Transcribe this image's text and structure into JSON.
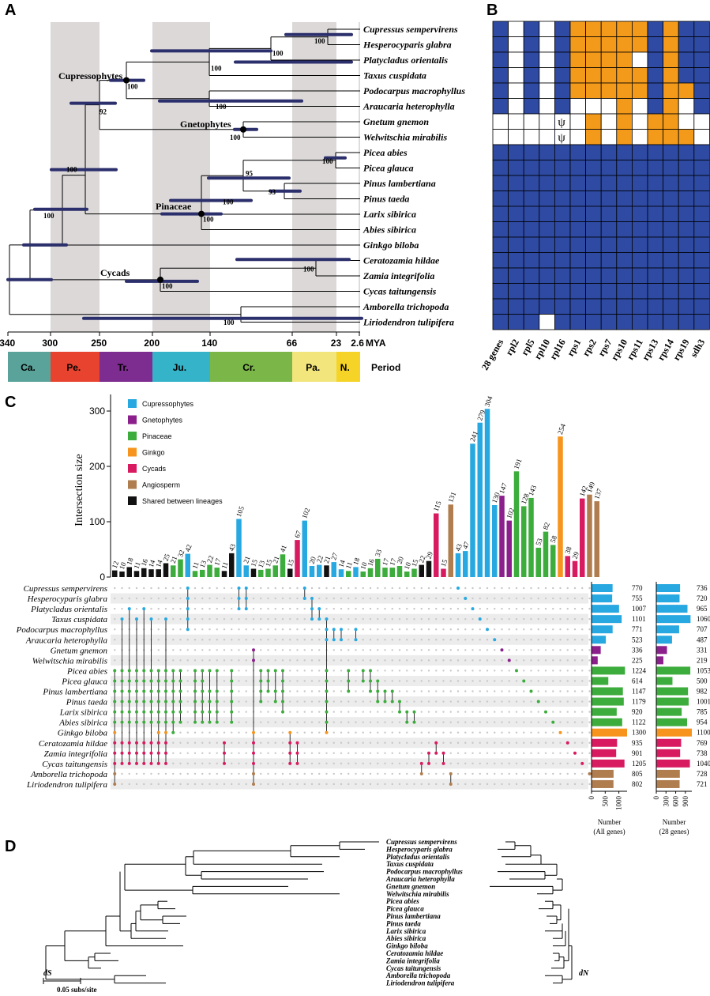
{
  "labels": {
    "A": "A",
    "B": "B",
    "C": "C",
    "D": "D"
  },
  "colors": {
    "blue": "#2e4aa3",
    "orange": "#f39a1b",
    "white": "#ffffff",
    "bar": "#2b2f6b",
    "shade": "#dcd8d8",
    "Cupressophytes": "#27a8e0",
    "Gnetophytes": "#8b1f8b",
    "Pinaceae": "#3cac3c",
    "Ginkgo": "#f7941d",
    "Cycads": "#d81b60",
    "Angiosperm": "#b07d4f",
    "Shared": "#111111"
  },
  "species": [
    "Cupressus sempervirens",
    "Hesperocyparis glabra",
    "Platycladus orientalis",
    "Taxus cuspidata",
    "Podocarpus macrophyllus",
    "Araucaria heterophylla",
    "Gnetum gnemon",
    "Welwitschia mirabilis",
    "Picea abies",
    "Picea glauca",
    "Pinus lambertiana",
    "Pinus taeda",
    "Larix sibirica",
    "Abies sibirica",
    "Ginkgo biloba",
    "Ceratozamia hildae",
    "Zamia integrifolia",
    "Cycas taitungensis",
    "Amborella trichopoda",
    "Liriodendron tulipifera"
  ],
  "panelA": {
    "clades": [
      "Cupressophytes",
      "Gnetophytes",
      "Pinaceae",
      "Cycads"
    ],
    "bootstrap": [
      "100",
      "100",
      "100",
      "100",
      "92",
      "100",
      "100",
      "95",
      "100",
      "93",
      "100",
      "100",
      "100",
      "100",
      "100",
      "100",
      "100"
    ],
    "axis_ticks": [
      "340",
      "300",
      "250",
      "200",
      "140",
      "66",
      "23",
      "2.6"
    ],
    "axis_unit": "MYA",
    "periods": [
      {
        "name": "Ca.",
        "color": "#5aa39a"
      },
      {
        "name": "Pe.",
        "color": "#e8432e"
      },
      {
        "name": "Tr.",
        "color": "#7d2c8f"
      },
      {
        "name": "Ju.",
        "color": "#34b3c9"
      },
      {
        "name": "Cr.",
        "color": "#7ab648"
      },
      {
        "name": "Pa.",
        "color": "#f2e57c"
      },
      {
        "name": "N.",
        "color": "#f5d327"
      }
    ],
    "period_label": "Period"
  },
  "panelB": {
    "genes": [
      "28 genes",
      "rpl2",
      "rpl5",
      "rpl10",
      "rpl16",
      "rps1",
      "rps2",
      "rps7",
      "rps10",
      "rps11",
      "rps13",
      "rps14",
      "rps19",
      "sdh3"
    ],
    "pseudogene_symbol": "ψ",
    "grid": [
      "BWBWBOOOOOBOBB",
      "BWBWBOOOOOBOBB",
      "BWBWBOOOOWBOBB",
      "BWBWBOOOOOBOBB",
      "BWBWBOOOOOBOOB",
      "BWBWBWWWOWBOWB",
      "WWWWPWOWOWOOWW",
      "WWWWPWOWOWOOOW",
      "BBBBBBBBBBBBBB",
      "BBBBBBBBBBBBBB",
      "BBBBBBBBBBBBBB",
      "BBBBBBBBBBBBBB",
      "BBBBBBBBBBBBBB",
      "BBBBBBBBBBBBBB",
      "BBBBBBBBBBBBBB",
      "BBBBBBBBBBBBBB",
      "BBBBBBBBBBBBBB",
      "BBBBBBBBBBBBBB",
      "BBBBBBBBBBBBBB",
      "BBBWBBBBBBBBBB"
    ]
  },
  "chart_data": {
    "type": "bar",
    "ylabel": "Intersection size",
    "ylim": [
      0,
      330
    ],
    "yticks": [
      0,
      100,
      200,
      300
    ],
    "legend": [
      "Cupressophytes",
      "Gnetophytes",
      "Pinaceae",
      "Ginkgo",
      "Cycads",
      "Angiosperm",
      "Shared between lineages"
    ],
    "values": [
      12,
      10,
      18,
      11,
      16,
      14,
      14,
      25,
      21,
      32,
      42,
      11,
      13,
      22,
      17,
      11,
      43,
      105,
      21,
      15,
      13,
      15,
      21,
      41,
      15,
      67,
      102,
      20,
      22,
      21,
      27,
      14,
      11,
      18,
      10,
      16,
      33,
      17,
      17,
      20,
      10,
      15,
      22,
      29,
      115,
      15,
      131,
      43,
      47,
      241,
      279,
      304,
      130,
      147,
      102,
      191,
      128,
      143,
      53,
      82,
      58,
      254,
      38,
      29,
      142,
      149,
      137
    ],
    "groups": [
      "S",
      "S",
      "S",
      "S",
      "S",
      "S",
      "S",
      "S",
      "P",
      "P",
      "C",
      "P",
      "P",
      "P",
      "P",
      "S",
      "S",
      "C",
      "C",
      "S",
      "P",
      "P",
      "P",
      "P",
      "S",
      "Y",
      "C",
      "C",
      "C",
      "S",
      "C",
      "C",
      "P",
      "C",
      "P",
      "P",
      "P",
      "P",
      "P",
      "P",
      "P",
      "P",
      "S",
      "S",
      "Y",
      "Y",
      "A",
      "C",
      "C",
      "C",
      "C",
      "C",
      "C",
      "G",
      "G",
      "P",
      "P",
      "P",
      "P",
      "P",
      "P",
      "K",
      "Y",
      "Y",
      "Y",
      "A",
      "A"
    ],
    "set_sizes_all": [
      770,
      755,
      1007,
      1101,
      771,
      523,
      336,
      225,
      1224,
      614,
      1147,
      1179,
      920,
      1122,
      1300,
      935,
      901,
      1205,
      805,
      802
    ],
    "set_sizes_28": [
      736,
      720,
      965,
      1060,
      707,
      487,
      331,
      219,
      1053,
      500,
      982,
      1001,
      785,
      954,
      1100,
      769,
      738,
      1040,
      728,
      721
    ],
    "axis_all": {
      "ticks": [
        "0",
        "500",
        "1000"
      ],
      "label": "Number\n(All genes)"
    },
    "axis_28": {
      "ticks": [
        "0",
        "300",
        "600",
        "900"
      ],
      "label": "Number\n(28 genes)"
    }
  },
  "panelD": {
    "left_label": "dS",
    "right_label": "dN",
    "scale_label": "0.05 subs/site"
  }
}
